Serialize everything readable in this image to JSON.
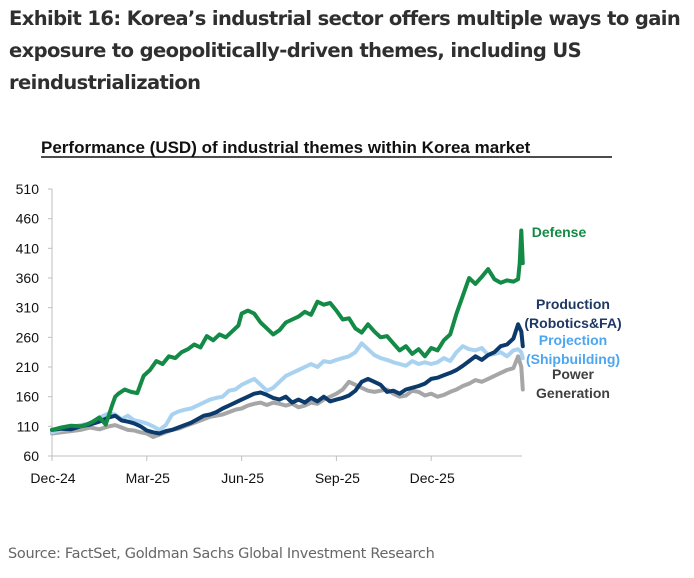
{
  "exhibit": {
    "title": "Exhibit 16: Korea’s industrial sector offers multiple ways to gain exposure to geopolitically-driven themes, including US reindustrialization",
    "source": "Source: FactSet, Goldman Sachs Global Investment Research"
  },
  "chart_data": {
    "type": "line",
    "title": "Performance (USD) of industrial themes within Korea market",
    "xlabel": "",
    "ylabel": "",
    "x_unit": "months since Dec-24",
    "xlim": [
      0,
      14.9
    ],
    "ylim": [
      60,
      510
    ],
    "yticks": [
      60,
      110,
      160,
      210,
      260,
      310,
      360,
      410,
      460,
      510
    ],
    "xticks": [
      {
        "value": 0,
        "label": "Dec-24"
      },
      {
        "value": 3,
        "label": "Mar-25"
      },
      {
        "value": 6,
        "label": "Jun-25"
      },
      {
        "value": 9,
        "label": "Sep-25"
      },
      {
        "value": 12,
        "label": "Dec-25"
      }
    ],
    "grid": false,
    "legend": "right (inline labels)",
    "series": [
      {
        "name": "Defense",
        "label_lines": [
          "Defense"
        ],
        "color": "#138a45",
        "x": [
          0,
          0.3,
          0.6,
          0.9,
          1.1,
          1.3,
          1.5,
          1.7,
          1.9,
          2.0,
          2.1,
          2.3,
          2.5,
          2.7,
          2.9,
          3.1,
          3.3,
          3.5,
          3.7,
          3.9,
          4.1,
          4.3,
          4.5,
          4.7,
          4.9,
          5.1,
          5.3,
          5.5,
          5.7,
          5.9,
          6.0,
          6.2,
          6.4,
          6.6,
          6.8,
          7.0,
          7.2,
          7.4,
          7.6,
          7.8,
          8.0,
          8.2,
          8.4,
          8.6,
          8.8,
          9.0,
          9.2,
          9.4,
          9.6,
          9.8,
          10.0,
          10.2,
          10.4,
          10.6,
          10.8,
          11.0,
          11.2,
          11.4,
          11.6,
          11.8,
          12.0,
          12.2,
          12.4,
          12.6,
          12.8,
          13.0,
          13.2,
          13.4,
          13.6,
          13.8,
          14.0,
          14.2,
          14.4,
          14.6,
          14.75,
          14.8,
          14.85,
          14.9
        ],
        "y": [
          104,
          108,
          111,
          110,
          113,
          118,
          125,
          113,
          145,
          160,
          165,
          172,
          168,
          166,
          195,
          205,
          220,
          215,
          228,
          225,
          235,
          240,
          248,
          243,
          262,
          255,
          265,
          260,
          270,
          280,
          300,
          305,
          300,
          285,
          275,
          265,
          272,
          285,
          290,
          295,
          303,
          298,
          320,
          315,
          318,
          305,
          290,
          292,
          275,
          268,
          282,
          270,
          260,
          262,
          250,
          238,
          245,
          232,
          240,
          228,
          242,
          238,
          255,
          265,
          300,
          330,
          360,
          350,
          362,
          375,
          358,
          352,
          356,
          354,
          358,
          385,
          440,
          385
        ]
      },
      {
        "name": "Production (Robotics&FA)",
        "label_lines": [
          "Production",
          "(Robotics&FA)"
        ],
        "color": "#0b3a6b",
        "x": [
          0,
          0.3,
          0.6,
          0.9,
          1.2,
          1.5,
          1.8,
          2.0,
          2.2,
          2.4,
          2.6,
          2.8,
          3.0,
          3.2,
          3.4,
          3.6,
          3.8,
          4.0,
          4.2,
          4.4,
          4.6,
          4.8,
          5.0,
          5.2,
          5.4,
          5.6,
          5.8,
          6.0,
          6.2,
          6.4,
          6.6,
          6.8,
          7.0,
          7.2,
          7.4,
          7.6,
          7.8,
          8.0,
          8.2,
          8.4,
          8.6,
          8.8,
          9.0,
          9.2,
          9.4,
          9.6,
          9.8,
          10.0,
          10.2,
          10.4,
          10.6,
          10.8,
          11.0,
          11.2,
          11.4,
          11.6,
          11.8,
          12.0,
          12.2,
          12.4,
          12.6,
          12.8,
          13.0,
          13.2,
          13.4,
          13.6,
          13.8,
          14.0,
          14.2,
          14.4,
          14.6,
          14.75,
          14.85,
          14.9
        ],
        "y": [
          104,
          106,
          105,
          110,
          113,
          118,
          125,
          128,
          120,
          118,
          115,
          110,
          103,
          100,
          98,
          102,
          104,
          108,
          112,
          116,
          122,
          128,
          130,
          134,
          140,
          145,
          150,
          155,
          160,
          165,
          167,
          163,
          158,
          155,
          160,
          150,
          155,
          150,
          158,
          152,
          160,
          152,
          155,
          158,
          162,
          170,
          185,
          190,
          185,
          180,
          168,
          170,
          165,
          172,
          175,
          178,
          182,
          190,
          192,
          196,
          200,
          205,
          212,
          220,
          228,
          222,
          230,
          235,
          245,
          248,
          258,
          282,
          270,
          245
        ]
      },
      {
        "name": "Projection (Shipbuilding)",
        "label_lines": [
          "Projection",
          "(Shipbuilding)"
        ],
        "color": "#a9d2f0",
        "x": [
          0,
          0.3,
          0.6,
          0.9,
          1.2,
          1.5,
          1.8,
          2.0,
          2.2,
          2.4,
          2.6,
          2.8,
          3.0,
          3.2,
          3.4,
          3.6,
          3.8,
          4.0,
          4.2,
          4.4,
          4.6,
          4.8,
          5.0,
          5.2,
          5.4,
          5.6,
          5.8,
          6.0,
          6.2,
          6.4,
          6.6,
          6.8,
          7.0,
          7.2,
          7.4,
          7.6,
          7.8,
          8.0,
          8.2,
          8.4,
          8.6,
          8.8,
          9.0,
          9.2,
          9.4,
          9.6,
          9.8,
          10.0,
          10.2,
          10.4,
          10.6,
          10.8,
          11.0,
          11.2,
          11.4,
          11.6,
          11.8,
          12.0,
          12.2,
          12.4,
          12.6,
          12.8,
          13.0,
          13.2,
          13.4,
          13.6,
          13.8,
          14.0,
          14.2,
          14.4,
          14.6,
          14.75,
          14.85,
          14.9
        ],
        "y": [
          100,
          104,
          108,
          112,
          115,
          125,
          132,
          130,
          122,
          128,
          120,
          118,
          115,
          110,
          104,
          112,
          130,
          135,
          138,
          140,
          145,
          150,
          155,
          158,
          160,
          170,
          172,
          180,
          185,
          190,
          180,
          170,
          175,
          185,
          195,
          200,
          205,
          210,
          215,
          210,
          220,
          218,
          222,
          225,
          228,
          235,
          250,
          240,
          230,
          225,
          222,
          218,
          215,
          212,
          220,
          215,
          218,
          215,
          218,
          225,
          220,
          235,
          245,
          240,
          238,
          242,
          230,
          232,
          235,
          228,
          238,
          240,
          235,
          225
        ]
      },
      {
        "name": "Power Generation",
        "label_lines": [
          "Power",
          "Generation"
        ],
        "color": "#a6a6a6",
        "x": [
          0,
          0.3,
          0.6,
          0.9,
          1.2,
          1.5,
          1.8,
          2.0,
          2.2,
          2.4,
          2.6,
          2.8,
          3.0,
          3.2,
          3.4,
          3.6,
          3.8,
          4.0,
          4.2,
          4.4,
          4.6,
          4.8,
          5.0,
          5.2,
          5.4,
          5.6,
          5.8,
          6.0,
          6.2,
          6.4,
          6.6,
          6.8,
          7.0,
          7.2,
          7.4,
          7.6,
          7.8,
          8.0,
          8.2,
          8.4,
          8.6,
          8.8,
          9.0,
          9.2,
          9.4,
          9.6,
          9.8,
          10.0,
          10.2,
          10.4,
          10.6,
          10.8,
          11.0,
          11.2,
          11.4,
          11.6,
          11.8,
          12.0,
          12.2,
          12.4,
          12.6,
          12.8,
          13.0,
          13.2,
          13.4,
          13.6,
          13.8,
          14.0,
          14.2,
          14.4,
          14.6,
          14.75,
          14.85,
          14.9
        ],
        "y": [
          98,
          100,
          102,
          104,
          108,
          105,
          110,
          112,
          108,
          104,
          103,
          100,
          98,
          92,
          96,
          100,
          104,
          106,
          110,
          114,
          118,
          122,
          126,
          128,
          130,
          134,
          138,
          140,
          145,
          148,
          150,
          146,
          150,
          148,
          145,
          148,
          142,
          145,
          150,
          148,
          155,
          160,
          165,
          172,
          185,
          180,
          175,
          170,
          168,
          170,
          172,
          165,
          160,
          162,
          170,
          168,
          162,
          165,
          160,
          163,
          168,
          172,
          178,
          182,
          188,
          185,
          190,
          195,
          200,
          205,
          208,
          228,
          210,
          172
        ]
      }
    ]
  }
}
